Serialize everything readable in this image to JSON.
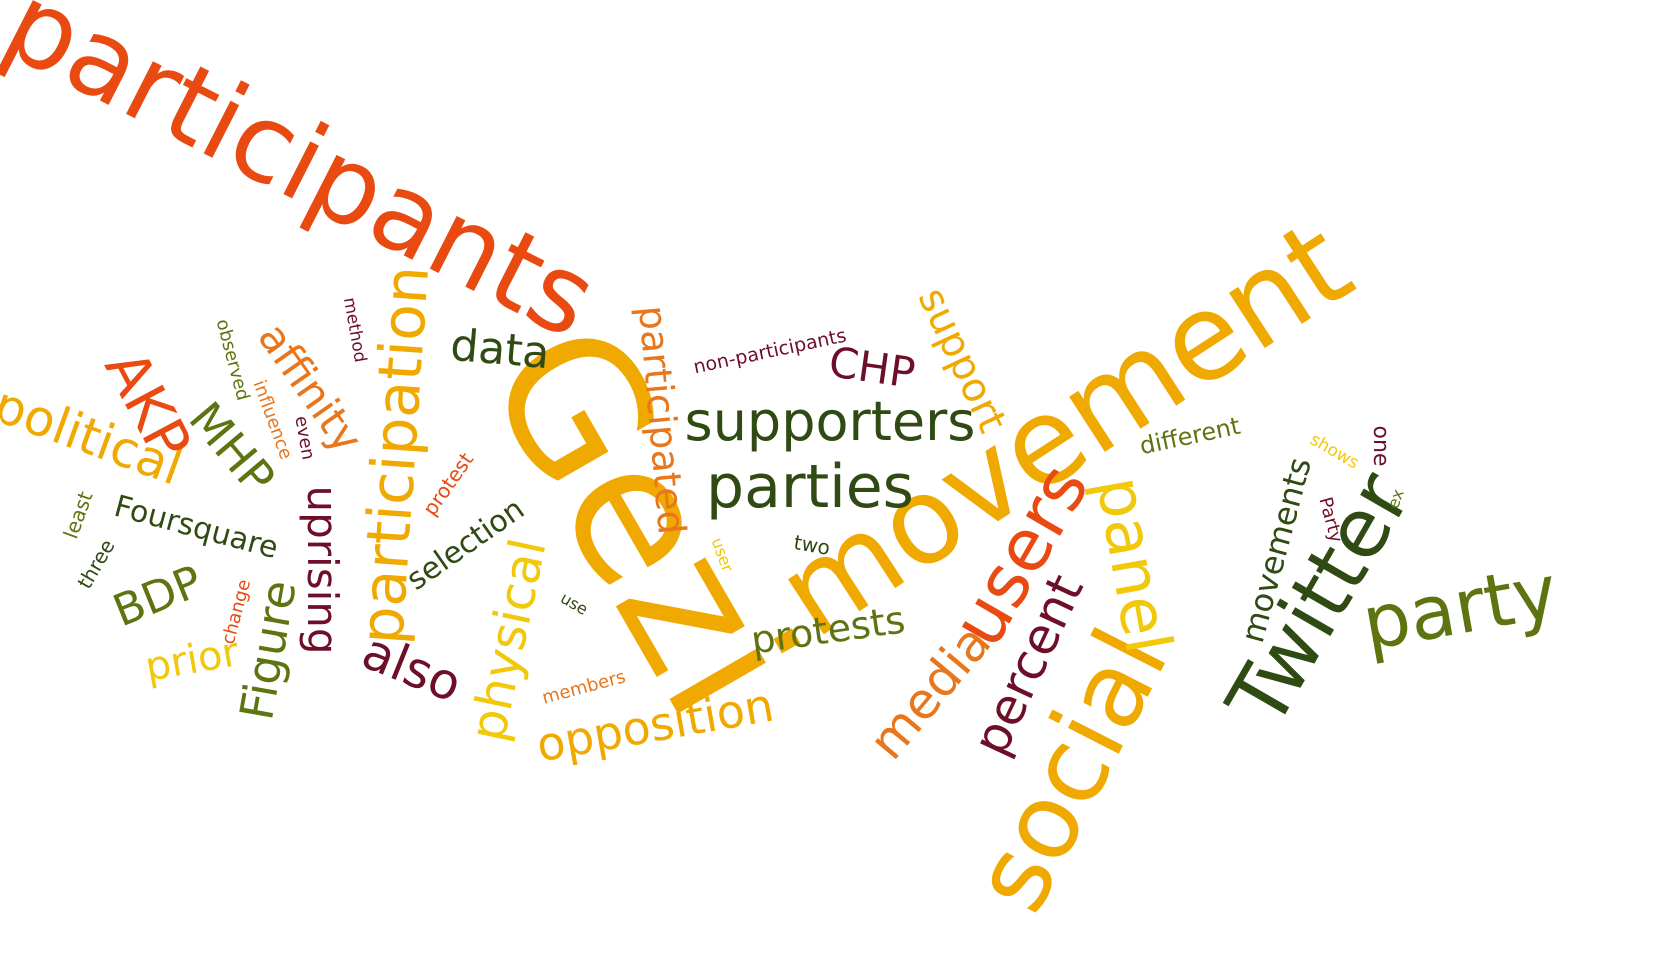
{
  "words": {
    "participants": "participants",
    "gezi": "Gezi",
    "movement": "movement",
    "social": "social",
    "twitter": "Twitter",
    "party": "party",
    "users": "users",
    "supporters": "supporters",
    "parties": "parties",
    "participation": "participation",
    "panel": "panel",
    "political": "political",
    "akp": "AKP",
    "data": "data",
    "opposition": "opposition",
    "physical": "physical",
    "percent": "percent",
    "media": "media",
    "also": "also",
    "uprising": "uprising",
    "figure": "Figure",
    "protests": "protests",
    "affinity": "affinity",
    "chp": "CHP",
    "support": "support",
    "participated": "participated",
    "mhp": "MHP",
    "bdp": "BDP",
    "prior": "prior",
    "movements": "movements",
    "foursquare": "Foursquare",
    "selection": "selection",
    "different": "different",
    "protest": "protest",
    "non_participants": "non-participants",
    "observed": "observed",
    "influence": "influence",
    "even": "even",
    "method": "method",
    "least": "least",
    "three": "three",
    "change": "change",
    "members": "members",
    "use": "use",
    "user": "user",
    "two": "two",
    "shows": "shows",
    "one": "one",
    "ex": "ex",
    "party_cap": "Party"
  },
  "colors": {
    "red_orange": "#e84a12",
    "gold": "#f0a900",
    "yellow": "#f2c80a",
    "orange": "#e8761c",
    "dark_green": "#2f4a12",
    "olive": "#5e7410",
    "maroon": "#6e0f2a"
  }
}
